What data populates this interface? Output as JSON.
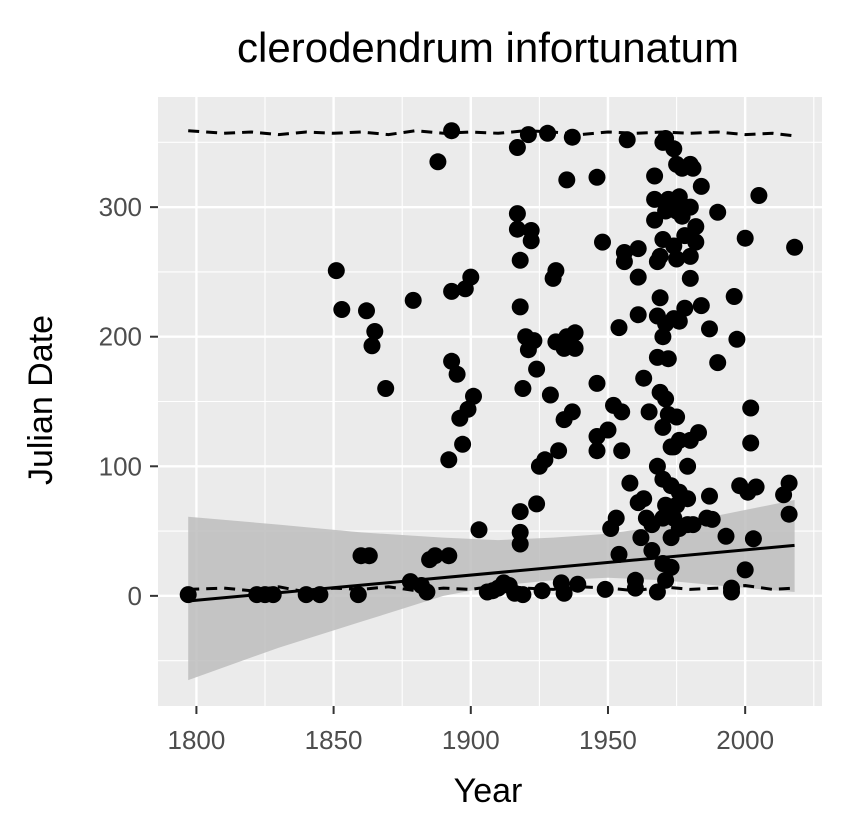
{
  "chart_data": {
    "type": "scatter",
    "title": "clerodendrum infortunatum",
    "xlabel": "Year",
    "ylabel": "Julian Date",
    "xlim": [
      1786,
      2028
    ],
    "ylim": [
      -85,
      385
    ],
    "x_ticks": [
      1800,
      1850,
      1900,
      1950,
      2000
    ],
    "x_tick_labels": [
      "1800",
      "1850",
      "1900",
      "1950",
      "2000"
    ],
    "y_ticks": [
      0,
      100,
      200,
      300
    ],
    "y_tick_labels": [
      "0",
      "100",
      "200",
      "300"
    ],
    "grid": true,
    "colors": {
      "panel": "#ebebeb",
      "grid": "#ffffff",
      "points": "#000000",
      "ribbon": "#bdbdbd",
      "tick_text": "#4d4d4d"
    },
    "points": [
      [
        1797,
        1
      ],
      [
        1822,
        1
      ],
      [
        1825,
        1
      ],
      [
        1828,
        1
      ],
      [
        1840,
        1
      ],
      [
        1845,
        1
      ],
      [
        1851,
        251
      ],
      [
        1853,
        221
      ],
      [
        1862,
        220
      ],
      [
        1864,
        193
      ],
      [
        1865,
        204
      ],
      [
        1869,
        160
      ],
      [
        1860,
        31
      ],
      [
        1863,
        31
      ],
      [
        1859,
        1
      ],
      [
        1878,
        11
      ],
      [
        1879,
        228
      ],
      [
        1882,
        8
      ],
      [
        1884,
        3
      ],
      [
        1885,
        28
      ],
      [
        1887,
        31
      ],
      [
        1888,
        335
      ],
      [
        1892,
        31
      ],
      [
        1892,
        105
      ],
      [
        1893,
        235
      ],
      [
        1893,
        181
      ],
      [
        1893,
        359
      ],
      [
        1895,
        171
      ],
      [
        1896,
        137
      ],
      [
        1897,
        117
      ],
      [
        1898,
        237
      ],
      [
        1899,
        144
      ],
      [
        1900,
        246
      ],
      [
        1901,
        154
      ],
      [
        1903,
        51
      ],
      [
        1906,
        3
      ],
      [
        1908,
        4
      ],
      [
        1910,
        6
      ],
      [
        1912,
        10
      ],
      [
        1914,
        8
      ],
      [
        1916,
        2
      ],
      [
        1917,
        346
      ],
      [
        1917,
        295
      ],
      [
        1917,
        283
      ],
      [
        1918,
        259
      ],
      [
        1918,
        223
      ],
      [
        1918,
        49
      ],
      [
        1918,
        40
      ],
      [
        1918,
        65
      ],
      [
        1919,
        160
      ],
      [
        1919,
        1
      ],
      [
        1920,
        200
      ],
      [
        1921,
        190
      ],
      [
        1921,
        356
      ],
      [
        1922,
        274
      ],
      [
        1922,
        282
      ],
      [
        1923,
        197
      ],
      [
        1924,
        175
      ],
      [
        1924,
        71
      ],
      [
        1925,
        100
      ],
      [
        1926,
        4
      ],
      [
        1927,
        105
      ],
      [
        1928,
        357
      ],
      [
        1929,
        155
      ],
      [
        1930,
        245
      ],
      [
        1931,
        196
      ],
      [
        1931,
        251
      ],
      [
        1932,
        112
      ],
      [
        1933,
        10
      ],
      [
        1934,
        2
      ],
      [
        1934,
        191
      ],
      [
        1934,
        136
      ],
      [
        1935,
        321
      ],
      [
        1935,
        200
      ],
      [
        1936,
        195
      ],
      [
        1937,
        354
      ],
      [
        1937,
        142
      ],
      [
        1938,
        203
      ],
      [
        1938,
        191
      ],
      [
        1939,
        9
      ],
      [
        1946,
        323
      ],
      [
        1946,
        164
      ],
      [
        1946,
        123
      ],
      [
        1946,
        112
      ],
      [
        1948,
        273
      ],
      [
        1949,
        5
      ],
      [
        1950,
        128
      ],
      [
        1951,
        52
      ],
      [
        1952,
        147
      ],
      [
        1953,
        60
      ],
      [
        1954,
        207
      ],
      [
        1954,
        32
      ],
      [
        1955,
        142
      ],
      [
        1955,
        112
      ],
      [
        1956,
        265
      ],
      [
        1956,
        258
      ],
      [
        1957,
        352
      ],
      [
        1958,
        87
      ],
      [
        1960,
        12
      ],
      [
        1960,
        6
      ],
      [
        1961,
        217
      ],
      [
        1961,
        246
      ],
      [
        1961,
        268
      ],
      [
        1961,
        72
      ],
      [
        1962,
        45
      ],
      [
        1963,
        168
      ],
      [
        1963,
        75
      ],
      [
        1964,
        60
      ],
      [
        1965,
        142
      ],
      [
        1966,
        55
      ],
      [
        1966,
        35
      ],
      [
        1967,
        290
      ],
      [
        1967,
        306
      ],
      [
        1967,
        324
      ],
      [
        1968,
        258
      ],
      [
        1968,
        216
      ],
      [
        1968,
        184
      ],
      [
        1968,
        100
      ],
      [
        1968,
        3
      ],
      [
        1969,
        262
      ],
      [
        1969,
        230
      ],
      [
        1969,
        157
      ],
      [
        1970,
        350
      ],
      [
        1970,
        275
      ],
      [
        1970,
        200
      ],
      [
        1970,
        130
      ],
      [
        1970,
        90
      ],
      [
        1970,
        60
      ],
      [
        1970,
        25
      ],
      [
        1971,
        353
      ],
      [
        1971,
        297
      ],
      [
        1971,
        210
      ],
      [
        1971,
        152
      ],
      [
        1971,
        70
      ],
      [
        1971,
        12
      ],
      [
        1972,
        306
      ],
      [
        1972,
        183
      ],
      [
        1972,
        140
      ],
      [
        1973,
        115
      ],
      [
        1973,
        85
      ],
      [
        1973,
        45
      ],
      [
        1973,
        22
      ],
      [
        1974,
        345
      ],
      [
        1974,
        270
      ],
      [
        1974,
        214
      ],
      [
        1974,
        115
      ],
      [
        1974,
        60
      ],
      [
        1975,
        333
      ],
      [
        1975,
        297
      ],
      [
        1975,
        260
      ],
      [
        1975,
        138
      ],
      [
        1975,
        70
      ],
      [
        1976,
        308
      ],
      [
        1976,
        212
      ],
      [
        1976,
        120
      ],
      [
        1976,
        80
      ],
      [
        1976,
        52
      ],
      [
        1977,
        330
      ],
      [
        1977,
        293
      ],
      [
        1978,
        300
      ],
      [
        1978,
        278
      ],
      [
        1978,
        222
      ],
      [
        1979,
        100
      ],
      [
        1979,
        75
      ],
      [
        1979,
        55
      ],
      [
        1980,
        333
      ],
      [
        1980,
        300
      ],
      [
        1980,
        262
      ],
      [
        1980,
        245
      ],
      [
        1980,
        120
      ],
      [
        1981,
        330
      ],
      [
        1981,
        55
      ],
      [
        1982,
        285
      ],
      [
        1982,
        273
      ],
      [
        1983,
        126
      ],
      [
        1984,
        316
      ],
      [
        1984,
        224
      ],
      [
        1986,
        60
      ],
      [
        1987,
        206
      ],
      [
        1987,
        77
      ],
      [
        1988,
        59
      ],
      [
        1990,
        180
      ],
      [
        1990,
        296
      ],
      [
        1993,
        46
      ],
      [
        1995,
        3
      ],
      [
        1995,
        6
      ],
      [
        1996,
        231
      ],
      [
        1997,
        198
      ],
      [
        1998,
        85
      ],
      [
        2000,
        276
      ],
      [
        2000,
        20
      ],
      [
        2001,
        80
      ],
      [
        2002,
        118
      ],
      [
        2002,
        145
      ],
      [
        2003,
        44
      ],
      [
        2004,
        84
      ],
      [
        2005,
        309
      ],
      [
        2014,
        78
      ],
      [
        2016,
        87
      ],
      [
        2016,
        63
      ],
      [
        2018,
        269
      ]
    ],
    "trend_line": {
      "x": [
        1797,
        2018
      ],
      "y": [
        -4,
        39
      ]
    },
    "ribbon": {
      "x": [
        1797,
        1830,
        1860,
        1890,
        1910,
        1930,
        1950,
        1970,
        1990,
        2018
      ],
      "lower": [
        -65,
        -40,
        -20,
        0,
        8,
        12,
        14,
        12,
        8,
        3
      ],
      "upper": [
        61,
        55,
        49,
        45,
        43,
        45,
        48,
        54,
        62,
        74
      ]
    },
    "upper_quantile_band": {
      "x": [
        1797,
        1810,
        1820,
        1830,
        1840,
        1850,
        1860,
        1870,
        1880,
        1890,
        1900,
        1910,
        1920,
        1930,
        1940,
        1950,
        1960,
        1970,
        1980,
        1990,
        2000,
        2010,
        2018
      ],
      "y": [
        359,
        357,
        358,
        356,
        358,
        357,
        358,
        356,
        359,
        357,
        358,
        357,
        359,
        358,
        356,
        358,
        357,
        358,
        357,
        358,
        356,
        357,
        355
      ]
    },
    "lower_quantile_band": {
      "x": [
        1797,
        1810,
        1820,
        1830,
        1840,
        1850,
        1860,
        1870,
        1880,
        1890,
        1900,
        1910,
        1920,
        1930,
        1940,
        1950,
        1960,
        1970,
        1980,
        1990,
        2000,
        2010,
        2018
      ],
      "y": [
        5,
        6,
        4,
        7,
        3,
        6,
        5,
        7,
        4,
        6,
        5,
        8,
        6,
        5,
        7,
        6,
        4,
        7,
        5,
        6,
        8,
        5,
        6
      ]
    }
  }
}
